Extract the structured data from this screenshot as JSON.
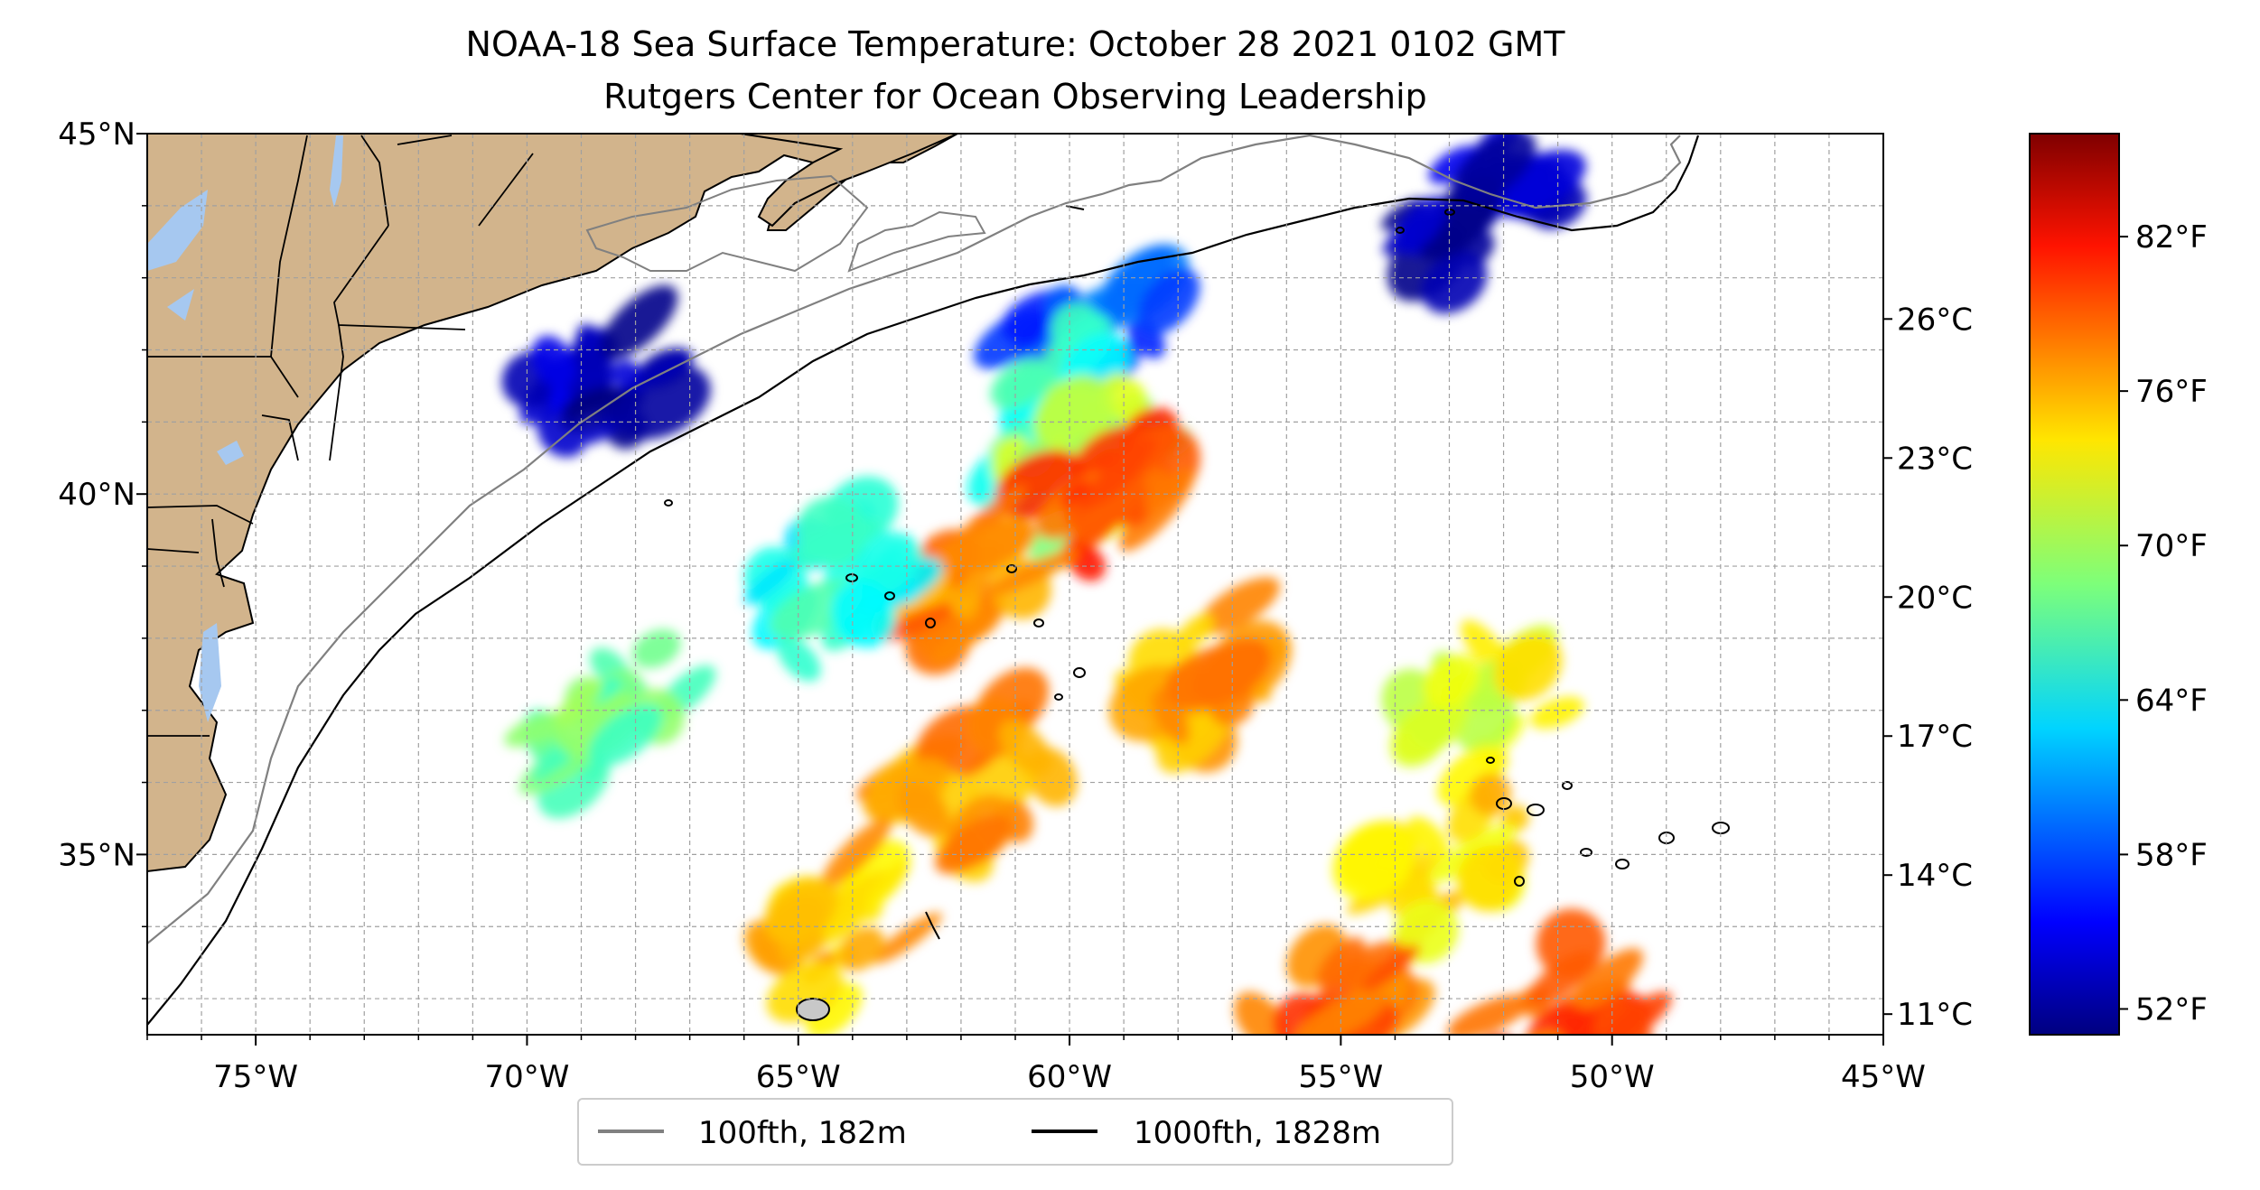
{
  "title": {
    "line1": "NOAA-18 Sea Surface Temperature: October 28 2021 0102 GMT",
    "line2": "Rutgers Center for Ocean Observing Leadership"
  },
  "map": {
    "lon_range": [
      -77,
      -45
    ],
    "lat_range": [
      32.5,
      45
    ],
    "lon_ticks": [
      {
        "value": -75,
        "label": "75°W"
      },
      {
        "value": -70,
        "label": "70°W"
      },
      {
        "value": -65,
        "label": "65°W"
      },
      {
        "value": -60,
        "label": "60°W"
      },
      {
        "value": -55,
        "label": "55°W"
      },
      {
        "value": -50,
        "label": "50°W"
      },
      {
        "value": -45,
        "label": "45°W"
      }
    ],
    "lat_ticks": [
      {
        "value": 45,
        "label": "45°N"
      },
      {
        "value": 40,
        "label": "40°N"
      },
      {
        "value": 35,
        "label": "35°N"
      }
    ],
    "grid": "dashed every 1°",
    "land_color": "#d2b48c",
    "lake_color": "#a6c8f0"
  },
  "legend": {
    "placement": "bottom-center",
    "items": [
      {
        "label": "100fth, 182m",
        "color": "#808080"
      },
      {
        "label": "1000fth, 1828m",
        "color": "#000000"
      }
    ]
  },
  "colorbar": {
    "colormap": "jet",
    "fahrenheit_range": [
      51,
      86
    ],
    "celsius_labels": [
      "26°C",
      "23°C",
      "20°C",
      "17°C",
      "14°C",
      "11°C"
    ],
    "fahrenheit_labels": [
      "82°F",
      "76°F",
      "70°F",
      "64°F",
      "58°F",
      "52°F"
    ]
  },
  "chart_data": {
    "type": "heatmap",
    "title": "NOAA-18 Sea Surface Temperature: October 28 2021 0102 GMT",
    "subtitle": "Rutgers Center for Ocean Observing Leadership",
    "xlim": [
      -77,
      -45
    ],
    "ylim": [
      32.5,
      45
    ],
    "units": "°F",
    "value_range": [
      51,
      86
    ],
    "regions": [
      {
        "lon": -68.5,
        "lat": 41.5,
        "value": 53
      },
      {
        "lon": -52.5,
        "lat": 44.0,
        "value": 53
      },
      {
        "lon": -59.5,
        "lat": 42.2,
        "value": 58
      },
      {
        "lon": -60.0,
        "lat": 41.2,
        "value": 66
      },
      {
        "lon": -59.5,
        "lat": 40.5,
        "value": 70
      },
      {
        "lon": -59.3,
        "lat": 40.0,
        "value": 79
      },
      {
        "lon": -62.0,
        "lat": 38.8,
        "value": 77
      },
      {
        "lon": -64.5,
        "lat": 38.8,
        "value": 65
      },
      {
        "lon": -61.5,
        "lat": 36.0,
        "value": 76
      },
      {
        "lon": -57.5,
        "lat": 37.5,
        "value": 76
      },
      {
        "lon": -64.0,
        "lat": 34.0,
        "value": 75
      },
      {
        "lon": -52.5,
        "lat": 37.0,
        "value": 72
      },
      {
        "lon": -53.0,
        "lat": 35.0,
        "value": 74
      },
      {
        "lon": -55.0,
        "lat": 33.0,
        "value": 78
      },
      {
        "lon": -51.0,
        "lat": 32.7,
        "value": 79
      },
      {
        "lon": -68.5,
        "lat": 37.0,
        "value": 68
      }
    ]
  }
}
